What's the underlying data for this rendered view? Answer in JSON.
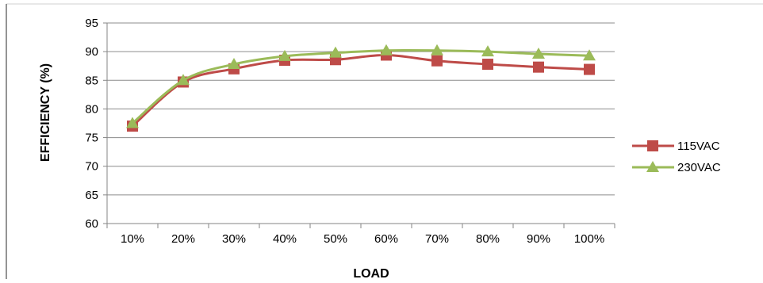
{
  "chart_data": {
    "type": "line",
    "categories": [
      "10%",
      "20%",
      "30%",
      "40%",
      "50%",
      "60%",
      "70%",
      "80%",
      "90%",
      "100%"
    ],
    "series": [
      {
        "name": "115VAC",
        "color": "#be4b48",
        "marker": "square",
        "values": [
          77.0,
          84.7,
          87.0,
          88.5,
          88.6,
          89.4,
          88.4,
          87.8,
          87.3,
          86.9
        ]
      },
      {
        "name": "230VAC",
        "color": "#9bbb59",
        "marker": "triangle",
        "values": [
          77.5,
          85.0,
          87.8,
          89.2,
          89.8,
          90.2,
          90.2,
          90.0,
          89.6,
          89.3
        ]
      }
    ],
    "xlabel": "LOAD",
    "ylabel": "EFFICIENCY (%)",
    "ylim": [
      60,
      95
    ],
    "yticks": [
      60,
      65,
      70,
      75,
      80,
      85,
      90,
      95
    ],
    "grid": "horizontal",
    "legend_position": "right"
  }
}
